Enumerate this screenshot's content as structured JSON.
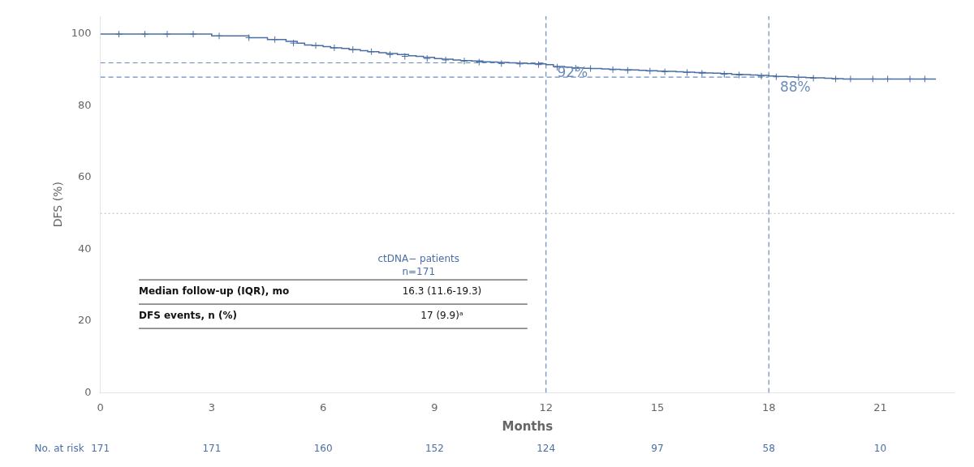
{
  "chart_data": {
    "type": "line",
    "xlabel": "Months",
    "ylabel": "DFS (%)",
    "xlim": [
      0,
      23
    ],
    "ylim": [
      0,
      105
    ],
    "xticks": [
      0,
      3,
      6,
      9,
      12,
      15,
      18,
      21
    ],
    "yticks": [
      0,
      20,
      40,
      60,
      80,
      100
    ],
    "grid": false,
    "series": [
      {
        "type": "line",
        "line_style": "step",
        "color": "#4a6fa5",
        "x": [
          0,
          0.5,
          1.0,
          1.5,
          2.0,
          2.5,
          3.0,
          3.5,
          4.0,
          4.5,
          5.0,
          5.3,
          5.5,
          5.7,
          6.0,
          6.2,
          6.5,
          6.7,
          7.0,
          7.2,
          7.5,
          7.7,
          8.0,
          8.3,
          8.5,
          8.7,
          9.0,
          9.2,
          9.5,
          9.7,
          10.0,
          10.3,
          10.5,
          10.7,
          11.0,
          11.2,
          11.5,
          11.7,
          12.0,
          12.2,
          12.5,
          12.7,
          13.0,
          13.2,
          13.5,
          13.7,
          14.0,
          14.3,
          14.5,
          14.7,
          15.0,
          15.2,
          15.5,
          15.7,
          16.0,
          16.3,
          16.5,
          16.7,
          17.0,
          17.3,
          17.5,
          17.7,
          18.0,
          18.2,
          18.5,
          18.7,
          19.0,
          19.2,
          19.5,
          19.7,
          20.0,
          20.3,
          20.5,
          20.7,
          21.0,
          21.5,
          22.0,
          22.5
        ],
        "values": [
          100,
          100,
          100,
          100,
          100,
          100,
          99.5,
          99.5,
          99.0,
          98.5,
          98.0,
          97.5,
          97.0,
          96.8,
          96.5,
          96.2,
          96.0,
          95.7,
          95.4,
          95.1,
          94.8,
          94.6,
          94.3,
          94.0,
          93.8,
          93.5,
          93.2,
          93.0,
          92.8,
          92.6,
          92.5,
          92.3,
          92.2,
          92.1,
          92.0,
          91.9,
          91.8,
          91.7,
          91.5,
          91.0,
          90.8,
          90.6,
          90.5,
          90.4,
          90.3,
          90.2,
          90.1,
          90.0,
          89.9,
          89.8,
          89.7,
          89.6,
          89.5,
          89.4,
          89.3,
          89.2,
          89.1,
          89.0,
          88.8,
          88.7,
          88.6,
          88.5,
          88.3,
          88.2,
          88.1,
          88.0,
          87.9,
          87.8,
          87.7,
          87.6,
          87.5,
          87.5,
          87.5,
          87.5,
          87.5,
          87.5,
          87.5,
          87.5
        ]
      },
      {
        "type": "scatter",
        "marker": "plus",
        "color": "#4a6fa5",
        "x": [
          0.5,
          1.2,
          1.8,
          2.5,
          3.2,
          4.0,
          4.7,
          5.2,
          5.8,
          6.3,
          6.8,
          7.3,
          7.8,
          8.2,
          8.8,
          9.3,
          9.8,
          10.2,
          10.8,
          11.3,
          11.8,
          12.3,
          12.8,
          13.2,
          13.8,
          14.2,
          14.8,
          15.2,
          15.8,
          16.2,
          16.8,
          17.2,
          17.8,
          18.2,
          18.8,
          19.2,
          19.8,
          20.2,
          20.8,
          21.2,
          21.8,
          22.2
        ],
        "values": [
          100,
          100,
          100,
          100,
          99.5,
          99.0,
          98.5,
          97.5,
          96.8,
          96.2,
          95.7,
          95.1,
          94.3,
          93.8,
          93.2,
          92.8,
          92.5,
          92.2,
          91.8,
          91.7,
          91.5,
          90.8,
          90.5,
          90.4,
          90.1,
          89.9,
          89.7,
          89.5,
          89.3,
          89.1,
          88.8,
          88.6,
          88.3,
          88.1,
          87.9,
          87.7,
          87.5,
          87.5,
          87.5,
          87.5,
          87.5,
          87.5
        ]
      }
    ],
    "reference_lines": [
      {
        "y": 50,
        "color": "#bbbbbb",
        "line_style": "dotted"
      },
      {
        "x": 12,
        "y": 92,
        "color": "#6b8cba",
        "line_style": "dashed"
      },
      {
        "x": 18,
        "y": 88,
        "color": "#6b8cba",
        "line_style": "dashed"
      }
    ],
    "annotations": [
      {
        "text": "92%",
        "x": 12.3,
        "y": 91,
        "color": "#6b8cba"
      },
      {
        "text": "88%",
        "x": 18.3,
        "y": 87,
        "color": "#6b8cba"
      }
    ],
    "table": {
      "header": [
        "ctDNA− patients",
        "n=171"
      ],
      "header_color": "#4a6fa5",
      "line_color": "#333333",
      "text_color": "#111111",
      "rows": [
        {
          "label": "Median follow-up (IQR), mo",
          "value": "16.3 (11.6-19.3)"
        },
        {
          "label": "DFS events, n (%)",
          "value": "17 (9.9)ᵃ"
        }
      ]
    },
    "at_risk": {
      "label": "No. at risk",
      "color": "#4a6fa5",
      "x": [
        0,
        3,
        6,
        9,
        12,
        15,
        18,
        21
      ],
      "values": [
        171,
        171,
        160,
        152,
        124,
        97,
        58,
        10
      ]
    }
  }
}
